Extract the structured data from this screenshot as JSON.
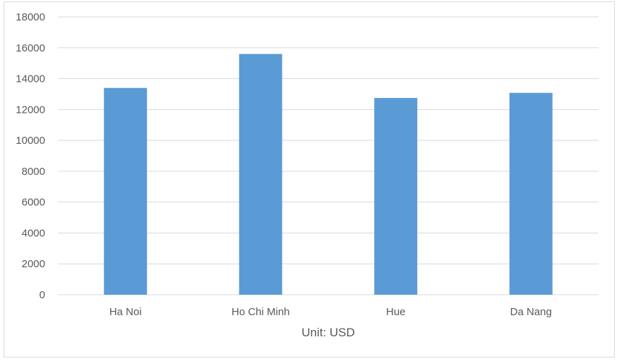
{
  "chart_data": {
    "type": "bar",
    "categories": [
      "Ha Noi",
      "Ho Chi Minh",
      "Hue",
      "Da Nang"
    ],
    "values": [
      13400,
      15600,
      12750,
      13080
    ],
    "xlabel": "Unit: USD",
    "ylabel": "",
    "ylim": [
      0,
      18000
    ],
    "yticks": [
      0,
      2000,
      4000,
      6000,
      8000,
      10000,
      12000,
      14000,
      16000,
      18000
    ],
    "grid": true,
    "legend": "none",
    "colors": {
      "bar": "#5b9bd5",
      "grid": "#d9d9d9",
      "text": "#595959"
    }
  }
}
